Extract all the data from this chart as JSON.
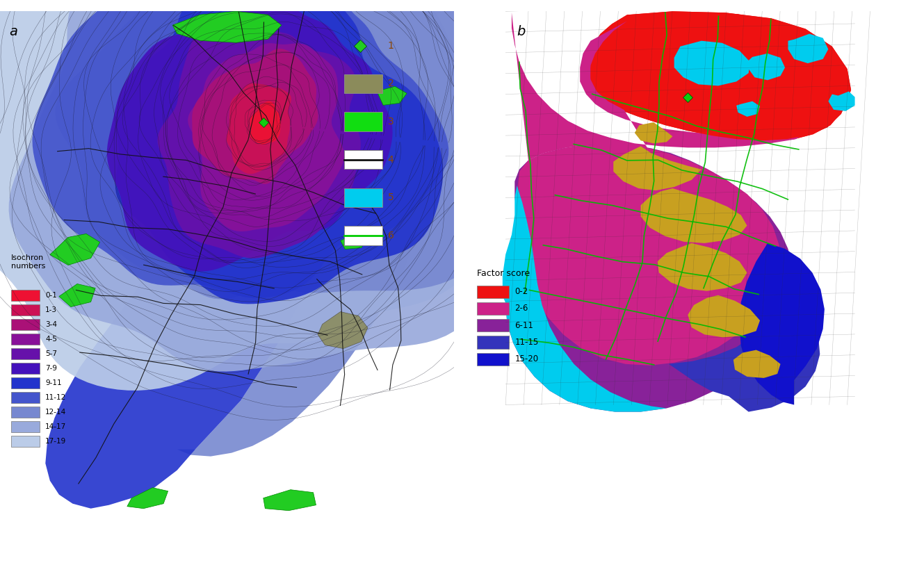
{
  "title_a": "a",
  "title_b": "b",
  "isochron_title": "Isochron\nnumbers",
  "isochron_labels": [
    "0-1",
    "1-3",
    "3-4",
    "4-5",
    "5-7",
    "7-9",
    "9-11",
    "11-12",
    "12-14",
    "14-17",
    "17-19"
  ],
  "isochron_colors": [
    "#EE1133",
    "#CC1155",
    "#AA1177",
    "#881199",
    "#6611AA",
    "#4411BB",
    "#2233CC",
    "#4455CC",
    "#7788D0",
    "#99AADC",
    "#BBCCE8"
  ],
  "factor_title": "Factor score",
  "factor_labels": [
    "0-2",
    "2-6",
    "6-11",
    "11-15",
    "15-20"
  ],
  "factor_colors": [
    "#EE1111",
    "#CC2288",
    "#882299",
    "#3333BB",
    "#1111CC"
  ],
  "bg_color": "#FFFFFF",
  "legend_color1": "#22CC22",
  "legend_color2": "#8B8B5B",
  "legend_color3": "#11DD11",
  "legend_color4_line": "#111111",
  "legend_color5": "#00CCEE",
  "legend_color6_line": "#00CC00",
  "cyan_color": "#00CCEE",
  "yellow_color": "#C8A020",
  "green_area_color": "#22CC22",
  "gray_area_color": "#8B8B5B"
}
